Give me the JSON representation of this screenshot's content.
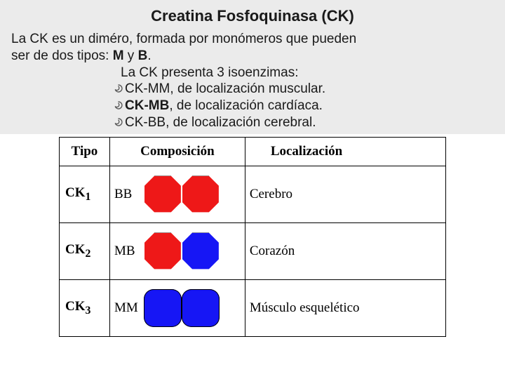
{
  "title": "Creatina Fosfoquinasa (CK)",
  "intro": {
    "line1a": "La CK es un diméro, formada por monómeros que pueden",
    "line2a": "ser de dos tipos: ",
    "mono1": "M",
    "and": " y ",
    "mono2": "B",
    "period": "."
  },
  "iso": {
    "heading": "La CK presenta 3 isoenzimas:",
    "items": [
      {
        "name": "CK-MM",
        "bold": false,
        "desc": ", de localización muscular."
      },
      {
        "name": "CK-MB",
        "bold": true,
        "desc": ", de localización cardíaca."
      },
      {
        "name": "CK-BB",
        "bold": false,
        "desc": ", de localización cerebral."
      }
    ]
  },
  "table": {
    "headers": {
      "tipo": "Tipo",
      "comp": "Composición",
      "loc": "Localización"
    },
    "rows": [
      {
        "tipo": "CK",
        "sub": "1",
        "comp_label": "BB",
        "left_color": "#ee1818",
        "right_color": "#ee1818",
        "shape": "oct-oct",
        "loc": "Cerebro"
      },
      {
        "tipo": "CK",
        "sub": "2",
        "comp_label": "MB",
        "left_color": "#ee1818",
        "right_color": "#1616f5",
        "shape": "oct-oct",
        "loc": "Corazón"
      },
      {
        "tipo": "CK",
        "sub": "3",
        "comp_label": "MM",
        "left_color": "#1616f5",
        "right_color": "#1616f5",
        "shape": "rnd-rnd",
        "loc": "Músculo esquelético"
      }
    ]
  },
  "colors": {
    "headerBg": "#ebebeb",
    "red": "#ee1818",
    "blue": "#1616f5",
    "bulletStroke": "#5a5a5a"
  }
}
